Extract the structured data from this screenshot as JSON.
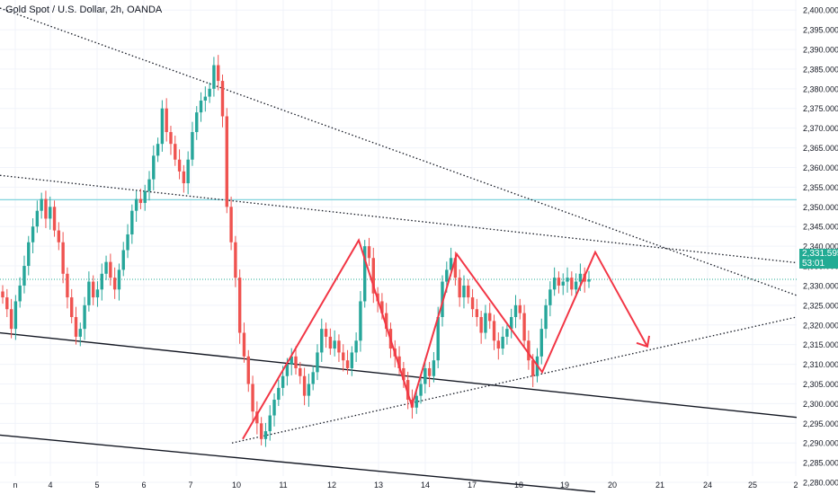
{
  "header": {
    "title": "Gold Spot / U.S. Dollar, 2h, OANDA"
  },
  "price_tag": {
    "price": "2,331.595",
    "countdown": "53:01"
  },
  "colors": {
    "up": "#26a69a",
    "down": "#ef5350",
    "pattern": "#f23645",
    "resistance": "#7fd3dc",
    "last_price_line": "#22ab94",
    "axis_text": "#131722",
    "grid": "#f0f3fa"
  },
  "chart_data": {
    "type": "candlestick",
    "title": "Gold Spot / U.S. Dollar, 2h, OANDA",
    "x_tick_labels": [
      "n",
      "4",
      "5",
      "6",
      "7",
      "10",
      "11",
      "12",
      "13",
      "14",
      "17",
      "18",
      "19",
      "20",
      "21",
      "24",
      "25",
      "2"
    ],
    "y_tick_labels": [
      "2,280.000",
      "2,285.000",
      "2,290.000",
      "2,295.000",
      "2,300.000",
      "2,305.000",
      "2,310.000",
      "2,315.000",
      "2,320.000",
      "2,325.000",
      "2,330.000",
      "2,335.000",
      "2,340.000",
      "2,345.000",
      "2,350.000",
      "2,355.000",
      "2,360.000",
      "2,365.000",
      "2,370.000",
      "2,375.000",
      "2,380.000",
      "2,385.000",
      "2,390.000",
      "2,395.000",
      "2,400.000"
    ],
    "ylim": [
      2277.5,
      2400.5
    ],
    "last_price": 2331.595,
    "resistance_level": 2351.8,
    "candle_closes": [
      2327,
      2324,
      2319,
      2326,
      2330,
      2335,
      2341,
      2345,
      2349,
      2352,
      2347,
      2350,
      2344,
      2341,
      2333,
      2327,
      2322,
      2317,
      2319,
      2325,
      2331,
      2327,
      2329,
      2333,
      2336,
      2332,
      2329,
      2334,
      2339,
      2343,
      2349,
      2352,
      2351,
      2354,
      2357,
      2363,
      2366,
      2375,
      2369,
      2366,
      2362,
      2359,
      2356,
      2362,
      2369,
      2374,
      2377,
      2378,
      2380,
      2386,
      2382,
      2373,
      2350,
      2341,
      2332,
      2318,
      2312,
      2305,
      2298,
      2295,
      2291,
      2293,
      2297,
      2301,
      2304,
      2307,
      2310,
      2312,
      2309,
      2307,
      2302,
      2305,
      2308,
      2313,
      2319,
      2317,
      2314,
      2316,
      2313,
      2311,
      2309,
      2313,
      2316,
      2326,
      2340,
      2337,
      2328,
      2326,
      2323,
      2319,
      2314,
      2312,
      2309,
      2306,
      2301,
      2299,
      2302,
      2305,
      2309,
      2307,
      2311,
      2322,
      2331,
      2334,
      2337,
      2332,
      2327,
      2330,
      2327,
      2324,
      2322,
      2318,
      2323,
      2321,
      2316,
      2314,
      2317,
      2319,
      2322,
      2325,
      2323,
      2316,
      2311,
      2307,
      2312,
      2319,
      2325,
      2329,
      2332,
      2330,
      2331,
      2332,
      2329,
      2331,
      2333,
      2331,
      2331.6
    ],
    "pattern_path_y": [
      2291.0,
      2341.5,
      2299.5,
      2338.0,
      2308.0,
      2338.5,
      2314.5
    ],
    "forecast_arrow_end_y": 2314.5,
    "trendlines": [
      {
        "name": "upper-descending-dotted",
        "style": "dotted"
      },
      {
        "name": "middle-descending-dotted",
        "style": "dotted"
      },
      {
        "name": "rising-support-dotted",
        "style": "dotted"
      },
      {
        "name": "channel-upper",
        "style": "solid"
      },
      {
        "name": "channel-lower",
        "style": "solid"
      }
    ]
  }
}
